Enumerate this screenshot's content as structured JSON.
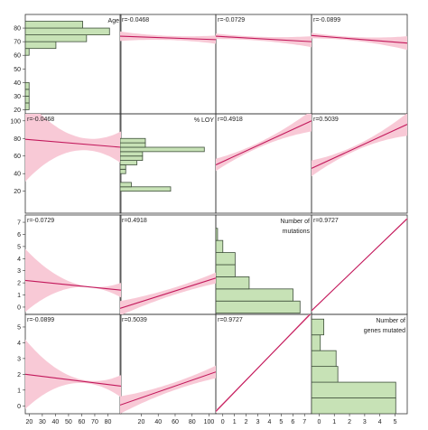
{
  "chart_data": {
    "type": "scatter",
    "variables": [
      {
        "name": "Age",
        "label": "Age",
        "range": [
          17,
          90
        ],
        "ticks": [
          20,
          30,
          40,
          50,
          60,
          70,
          80
        ],
        "xticks": [
          20,
          30,
          40,
          50,
          60,
          70,
          80
        ]
      },
      {
        "name": "% LOY",
        "label": "% LOY",
        "range": [
          -5,
          108
        ],
        "ticks": [
          20,
          40,
          60,
          80,
          100
        ],
        "xticks": [
          20,
          40,
          60,
          80,
          100
        ]
      },
      {
        "name": "Number of mutations",
        "label": "Number of\nmutations",
        "range": [
          -0.6,
          7.6
        ],
        "ticks": [
          0,
          1,
          2,
          3,
          4,
          5,
          6,
          7
        ],
        "xticks": [
          -1,
          0,
          1,
          2,
          3,
          4,
          5,
          6,
          7
        ]
      },
      {
        "name": "Number of genes mutated",
        "label": "Number of\ngenes mutated",
        "range": [
          -0.5,
          5.8
        ],
        "ticks": [
          0,
          1,
          2,
          3,
          4,
          5
        ],
        "xticks": [
          -1,
          0,
          1,
          2,
          3,
          4,
          5
        ]
      }
    ],
    "correlations": [
      {
        "a": 0,
        "b": 1,
        "r": "r=-0.0468"
      },
      {
        "a": 0,
        "b": 2,
        "r": "r=-0.0729"
      },
      {
        "a": 0,
        "b": 3,
        "r": "r=-0.0899"
      },
      {
        "a": 1,
        "b": 2,
        "r": "r=0.4918"
      },
      {
        "a": 1,
        "b": 3,
        "r": "r=0.5039"
      },
      {
        "a": 2,
        "b": 3,
        "r": "r=0.9727"
      }
    ],
    "histograms": [
      {
        "var": 0,
        "bins": [
          {
            "from": 20,
            "to": 25,
            "count": 2
          },
          {
            "from": 25,
            "to": 30,
            "count": 2
          },
          {
            "from": 30,
            "to": 35,
            "count": 2
          },
          {
            "from": 35,
            "to": 40,
            "count": 2
          },
          {
            "from": 60,
            "to": 65,
            "count": 2
          },
          {
            "from": 65,
            "to": 70,
            "count": 16
          },
          {
            "from": 70,
            "to": 75,
            "count": 32
          },
          {
            "from": 75,
            "to": 80,
            "count": 44
          },
          {
            "from": 80,
            "to": 85,
            "count": 30
          }
        ]
      },
      {
        "var": 1,
        "bins": [
          {
            "from": 20,
            "to": 25,
            "count": 18
          },
          {
            "from": 25,
            "to": 30,
            "count": 4
          },
          {
            "from": 40,
            "to": 45,
            "count": 2
          },
          {
            "from": 45,
            "to": 50,
            "count": 2
          },
          {
            "from": 50,
            "to": 55,
            "count": 6
          },
          {
            "from": 55,
            "to": 60,
            "count": 8
          },
          {
            "from": 60,
            "to": 65,
            "count": 8
          },
          {
            "from": 65,
            "to": 70,
            "count": 30
          },
          {
            "from": 70,
            "to": 75,
            "count": 9
          },
          {
            "from": 75,
            "to": 80,
            "count": 9
          }
        ]
      },
      {
        "var": 2,
        "bins": [
          {
            "from": -0.5,
            "to": 0.5,
            "count": 48
          },
          {
            "from": 0.5,
            "to": 1.5,
            "count": 44
          },
          {
            "from": 1.5,
            "to": 2.5,
            "count": 19
          },
          {
            "from": 2.5,
            "to": 3.5,
            "count": 11
          },
          {
            "from": 3.5,
            "to": 4.5,
            "count": 11
          },
          {
            "from": 4.5,
            "to": 5.5,
            "count": 4
          },
          {
            "from": 5.5,
            "to": 6.5,
            "count": 1
          }
        ]
      },
      {
        "var": 3,
        "bins": [
          {
            "from": -0.5,
            "to": 0.5,
            "count": 48
          },
          {
            "from": 0.5,
            "to": 1.5,
            "count": 48
          },
          {
            "from": 1.5,
            "to": 2.5,
            "count": 15
          },
          {
            "from": 2.5,
            "to": 3.5,
            "count": 14
          },
          {
            "from": 3.5,
            "to": 4.5,
            "count": 5
          },
          {
            "from": 4.5,
            "to": 5.5,
            "count": 7
          }
        ]
      }
    ],
    "fits": [
      {
        "row": 0,
        "col": 1,
        "y0": 74,
        "y1": 71.5,
        "c0": 3.5,
        "cm": 1.5,
        "c1": 3
      },
      {
        "row": 0,
        "col": 2,
        "y0": 74,
        "y1": 70,
        "c0": 2,
        "cm": 1.5,
        "c1": 4
      },
      {
        "row": 0,
        "col": 3,
        "y0": 74.5,
        "y1": 69,
        "c0": 2,
        "cm": 1.5,
        "c1": 5
      },
      {
        "row": 1,
        "col": 0,
        "y0": 79,
        "y1": 70,
        "c0": 48,
        "cm": 9,
        "c1": 18
      },
      {
        "row": 1,
        "col": 2,
        "y0": 50,
        "y1": 100,
        "c0": 7,
        "cm": 3,
        "c1": 12
      },
      {
        "row": 1,
        "col": 3,
        "y0": 46,
        "y1": 96,
        "c0": 9,
        "cm": 3,
        "c1": 13
      },
      {
        "row": 2,
        "col": 0,
        "y0": 2.2,
        "y1": 1.4,
        "c0": 2.6,
        "cm": 0.2,
        "c1": 0.6
      },
      {
        "row": 2,
        "col": 1,
        "y0": -0.1,
        "y1": 2.4,
        "c0": 0.6,
        "cm": 0.3,
        "c1": 0.45
      },
      {
        "row": 2,
        "col": 3,
        "y0": -0.3,
        "y1": 7.3,
        "c0": 0.08,
        "cm": 0.04,
        "c1": 0.1
      },
      {
        "row": 3,
        "col": 0,
        "y0": 2,
        "y1": 1.25,
        "c0": 2.2,
        "cm": 0.2,
        "c1": 0.7
      },
      {
        "row": 3,
        "col": 1,
        "y0": 0.05,
        "y1": 2.15,
        "c0": 0.55,
        "cm": 0.25,
        "c1": 0.4
      },
      {
        "row": 3,
        "col": 2,
        "y0": -0.35,
        "y1": 5.9,
        "c0": 0.1,
        "cm": 0.05,
        "c1": 0.1
      }
    ],
    "grid": false,
    "colors": {
      "line": "#c2185b",
      "band": "#f8c9d6",
      "bar_fill": "#c7e2b6",
      "bar_stroke": "#3e4f3a",
      "frame": "#333333",
      "text": "#222222"
    }
  }
}
